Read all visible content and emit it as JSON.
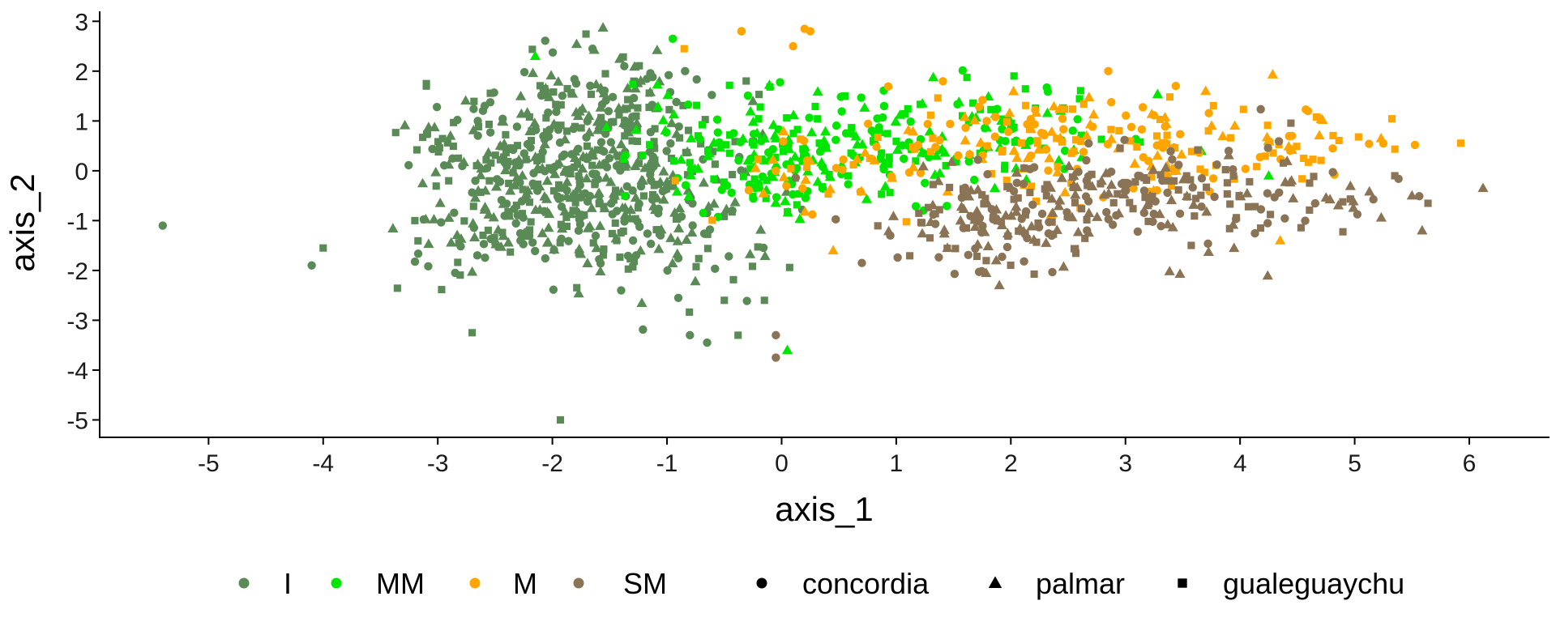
{
  "chart_data": {
    "type": "scatter",
    "xlabel": "axis_1",
    "ylabel": "axis_2",
    "xlim": [
      -5.95,
      6.7
    ],
    "ylim": [
      -5.35,
      3.2
    ],
    "xticks": [
      -5,
      -4,
      -3,
      -2,
      -1,
      0,
      1,
      2,
      3,
      4,
      5,
      6
    ],
    "yticks": [
      3,
      2,
      1,
      0,
      -1,
      -2,
      -3,
      -4,
      -5
    ],
    "grid": false,
    "legend_position": "bottom",
    "color_legend": [
      {
        "label": "I",
        "color": "#5a8a56"
      },
      {
        "label": "MM",
        "color": "#00e600"
      },
      {
        "label": "M",
        "color": "#ffa500"
      },
      {
        "label": "SM",
        "color": "#8b7355"
      }
    ],
    "shape_legend": [
      {
        "label": "concordia",
        "shape": "circle"
      },
      {
        "label": "palmar",
        "shape": "triangle"
      },
      {
        "label": "gualeguaychu",
        "shape": "square"
      }
    ],
    "series": [
      {
        "name": "I",
        "color": "#5a8a56",
        "clusters": [
          {
            "cx": -2.0,
            "cy": 0.2,
            "sx": 0.55,
            "sy": 0.75,
            "n": 340,
            "seed": 11
          },
          {
            "cx": -1.0,
            "cy": -0.6,
            "sx": 0.45,
            "sy": 0.9,
            "n": 150,
            "seed": 12
          },
          {
            "cx": -2.4,
            "cy": -1.3,
            "sx": 0.4,
            "sy": 0.5,
            "n": 90,
            "seed": 13
          },
          {
            "cx": -1.4,
            "cy": 1.5,
            "sx": 0.5,
            "sy": 0.45,
            "n": 70,
            "seed": 14
          }
        ],
        "points": [
          {
            "x": -5.4,
            "y": -1.1,
            "s": "circle"
          },
          {
            "x": -4.1,
            "y": -1.9,
            "s": "circle"
          },
          {
            "x": -4.0,
            "y": -1.55,
            "s": "square"
          },
          {
            "x": -3.2,
            "y": -1.0,
            "s": "square"
          },
          {
            "x": -3.1,
            "y": 1.75,
            "s": "square"
          },
          {
            "x": -3.1,
            "y": 1.7,
            "s": "square"
          },
          {
            "x": -2.7,
            "y": -3.25,
            "s": "square"
          },
          {
            "x": -1.93,
            "y": -5.0,
            "s": "square"
          },
          {
            "x": -1.4,
            "y": -2.4,
            "s": "circle"
          },
          {
            "x": -0.8,
            "y": -3.3,
            "s": "circle"
          },
          {
            "x": -0.65,
            "y": -3.45,
            "s": "circle"
          },
          {
            "x": -0.38,
            "y": -3.3,
            "s": "square"
          },
          {
            "x": -0.5,
            "y": -2.6,
            "s": "square"
          },
          {
            "x": -0.15,
            "y": -2.6,
            "s": "square"
          },
          {
            "x": -1.65,
            "y": 2.45,
            "s": "circle"
          }
        ]
      },
      {
        "name": "MM",
        "color": "#00e600",
        "clusters": [
          {
            "cx": -0.3,
            "cy": 0.4,
            "sx": 0.5,
            "sy": 0.7,
            "n": 120,
            "seed": 21
          },
          {
            "cx": 0.6,
            "cy": 0.4,
            "sx": 0.6,
            "sy": 0.6,
            "n": 110,
            "seed": 22
          },
          {
            "cx": 1.9,
            "cy": 0.8,
            "sx": 0.6,
            "sy": 0.5,
            "n": 80,
            "seed": 23
          }
        ],
        "points": [
          {
            "x": -0.95,
            "y": 2.65,
            "s": "circle"
          },
          {
            "x": -2.15,
            "y": 2.3,
            "s": "triangle"
          },
          {
            "x": 0.05,
            "y": -3.6,
            "s": "triangle"
          },
          {
            "x": 4.25,
            "y": -0.1,
            "s": "triangle"
          },
          {
            "x": 4.25,
            "y": 0.6,
            "s": "triangle"
          },
          {
            "x": -0.35,
            "y": 2.8,
            "s": "circle"
          }
        ]
      },
      {
        "name": "M",
        "color": "#ffa500",
        "clusters": [
          {
            "cx": 0.5,
            "cy": 0.0,
            "sx": 0.5,
            "sy": 0.5,
            "n": 45,
            "seed": 31
          },
          {
            "cx": 2.2,
            "cy": 0.7,
            "sx": 0.6,
            "sy": 0.5,
            "n": 90,
            "seed": 32
          },
          {
            "cx": 3.4,
            "cy": 0.4,
            "sx": 0.6,
            "sy": 0.55,
            "n": 80,
            "seed": 33
          },
          {
            "cx": 4.6,
            "cy": 0.5,
            "sx": 0.5,
            "sy": 0.4,
            "n": 30,
            "seed": 34
          }
        ],
        "points": [
          {
            "x": 0.2,
            "y": 2.85,
            "s": "circle"
          },
          {
            "x": 0.25,
            "y": 2.8,
            "s": "circle"
          },
          {
            "x": -0.85,
            "y": 2.45,
            "s": "square"
          },
          {
            "x": -0.35,
            "y": 2.8,
            "s": "circle"
          },
          {
            "x": 0.1,
            "y": 2.5,
            "s": "circle"
          },
          {
            "x": 2.85,
            "y": 2.0,
            "s": "circle"
          },
          {
            "x": 3.7,
            "y": 1.6,
            "s": "triangle"
          },
          {
            "x": 5.25,
            "y": 0.55,
            "s": "circle"
          },
          {
            "x": 4.35,
            "y": -1.4,
            "s": "triangle"
          },
          {
            "x": 0.45,
            "y": -1.6,
            "s": "triangle"
          }
        ]
      },
      {
        "name": "SM",
        "color": "#8b7355",
        "clusters": [
          {
            "cx": 1.8,
            "cy": -1.1,
            "sx": 0.5,
            "sy": 0.5,
            "n": 110,
            "seed": 41
          },
          {
            "cx": 2.8,
            "cy": -0.7,
            "sx": 0.55,
            "sy": 0.6,
            "n": 110,
            "seed": 42
          },
          {
            "cx": 3.8,
            "cy": -0.4,
            "sx": 0.6,
            "sy": 0.5,
            "n": 70,
            "seed": 43
          },
          {
            "cx": 5.0,
            "cy": -0.7,
            "sx": 0.4,
            "sy": 0.4,
            "n": 22,
            "seed": 44
          }
        ],
        "points": [
          {
            "x": 6.12,
            "y": -0.35,
            "s": "triangle"
          },
          {
            "x": -0.05,
            "y": -3.3,
            "s": "circle"
          },
          {
            "x": -0.05,
            "y": -3.75,
            "s": "circle"
          },
          {
            "x": 0.7,
            "y": -1.85,
            "s": "circle"
          },
          {
            "x": 1.9,
            "y": -2.3,
            "s": "triangle"
          },
          {
            "x": 5.35,
            "y": -0.1,
            "s": "square"
          },
          {
            "x": 5.5,
            "y": -0.5,
            "s": "triangle"
          }
        ]
      }
    ]
  }
}
